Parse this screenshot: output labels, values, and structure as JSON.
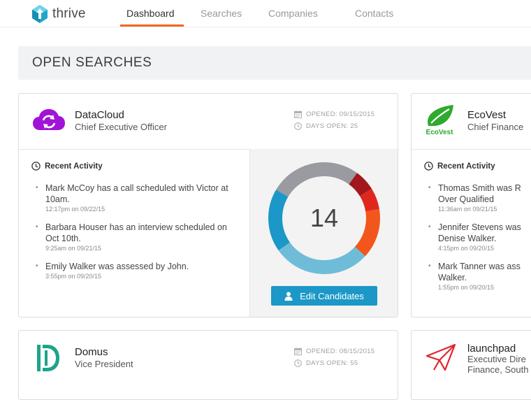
{
  "app": {
    "name": "thrive",
    "brand_color": "#1ea7c7",
    "accent_color": "#f26522"
  },
  "nav": {
    "tabs": [
      {
        "label": "Dashboard",
        "active": true
      },
      {
        "label": "Searches",
        "active": false
      },
      {
        "label": "Companies",
        "active": false
      },
      {
        "label": "Contacts",
        "active": false
      }
    ]
  },
  "section": {
    "title": "OPEN SEARCHES"
  },
  "cards": [
    {
      "company": "DataCloud",
      "role": "Chief Executive Officer",
      "opened": "OPENED: 09/15/2015",
      "days_open": "DAYS OPEN: 25",
      "logo_icon": "cloud-sync-icon",
      "logo_color": "#a113d6",
      "activity_title": "Recent Activity",
      "activities": [
        {
          "text": "Mark McCoy has a call scheduled with Victor at 10am.",
          "time": "12:17pm on 09/22/15"
        },
        {
          "text": "Barbara Houser has an interview scheduled on Oct 10th.",
          "time": "9:25am on 09/21/15"
        },
        {
          "text": "Emily Walker was assessed by John.",
          "time": "3:55pm on 09/20/15"
        }
      ],
      "candidate_count": "14",
      "pipeline_segments": [
        {
          "color": "#a3181c",
          "fraction": 0.062
        },
        {
          "color": "#e0271d",
          "fraction": 0.062
        },
        {
          "color": "#f2561c",
          "fraction": 0.145
        },
        {
          "color": "#6fbcd9",
          "fraction": 0.283
        },
        {
          "color": "#1b98c7",
          "fraction": 0.183
        },
        {
          "color": "#999ba0",
          "fraction": 0.265
        }
      ],
      "edit_label": "Edit Candidates"
    },
    {
      "company": "EcoVest",
      "role": "Chief Finance",
      "logo_icon": "leaf-icon",
      "logo_text": "EcoVest",
      "logo_color": "#2eaa2e",
      "activity_title": "Recent Activity",
      "activities": [
        {
          "text": "Thomas Smith was R Over Qualified",
          "time": "11:36am on 09/21/15"
        },
        {
          "text": "Jennifer Stevens was Denise Walker.",
          "time": "4:15pm on 09/20/15"
        },
        {
          "text": "Mark Tanner was ass Walker.",
          "time": "1:55pm on 09/20/15"
        }
      ]
    },
    {
      "company": "Domus",
      "role": "Vice President",
      "opened": "OPENED: 08/15/2015",
      "days_open": "DAYS OPEN: 55",
      "logo_icon": "domus-d-icon",
      "logo_color": "#1ea48a"
    },
    {
      "company": "launchpad",
      "role": "Executive Dire Finance, South",
      "role_line1": "Executive Dire",
      "role_line2": "Finance, South",
      "logo_icon": "paper-plane-icon",
      "logo_color": "#e0242e"
    }
  ]
}
